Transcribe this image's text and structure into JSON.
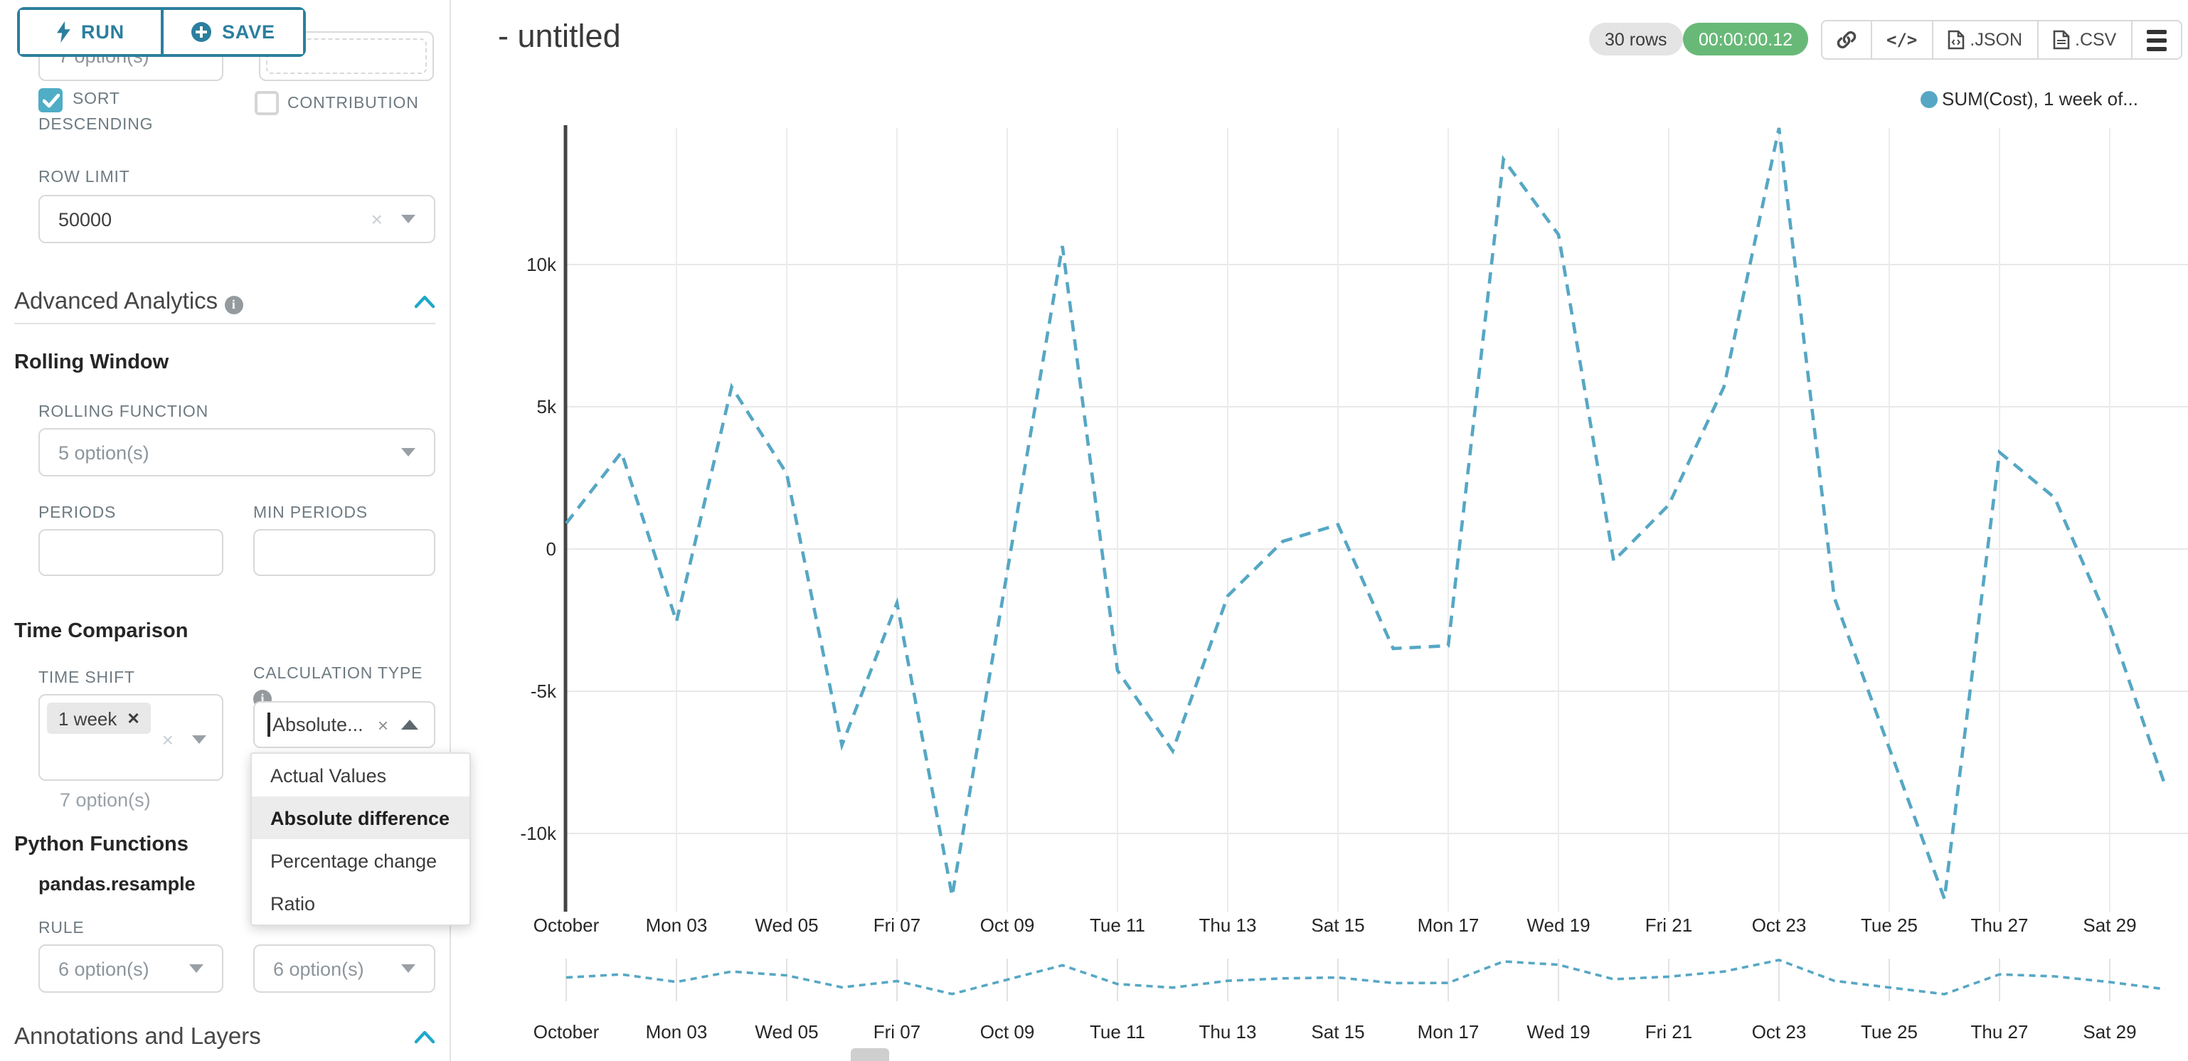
{
  "toolbar": {
    "run": "RUN",
    "save": "SAVE"
  },
  "sidebar": {
    "top_row": {
      "left_value": "7 option(s)"
    },
    "sort_descending": {
      "label_line1": "SORT",
      "label_line2": "DESCENDING",
      "checked": true
    },
    "contribution": {
      "label": "CONTRIBUTION",
      "checked": false
    },
    "row_limit": {
      "label": "ROW LIMIT",
      "value": "50000"
    },
    "advanced_analytics": {
      "title": "Advanced Analytics"
    },
    "rolling_window": {
      "title": "Rolling Window",
      "rolling_function_label": "ROLLING FUNCTION",
      "rolling_function_value": "5 option(s)",
      "periods_label": "PERIODS",
      "min_periods_label": "MIN PERIODS"
    },
    "time_comparison": {
      "title": "Time Comparison",
      "time_shift_label": "TIME SHIFT",
      "time_shift_tag": "1 week",
      "time_shift_hint": "7 option(s)",
      "calculation_type_label": "CALCULATION TYPE",
      "calculation_type_value": "Absolute...",
      "dropdown": {
        "options": [
          "Actual Values",
          "Absolute difference",
          "Percentage change",
          "Ratio"
        ],
        "selected": "Absolute difference"
      }
    },
    "python_functions": {
      "title": "Python Functions",
      "function_name": "pandas.resample",
      "rule_label": "RULE",
      "rule_value_left": "6 option(s)",
      "rule_value_right": "6 option(s)"
    },
    "annotations": {
      "title": "Annotations and Layers"
    }
  },
  "header": {
    "title": "- untitled",
    "rows_badge": "30 rows",
    "timer_badge": "00:00:00.12",
    "json_label": ".JSON",
    "csv_label": ".CSV"
  },
  "legend": {
    "label": "SUM(Cost), 1 week of..."
  },
  "colors": {
    "accent_teal": "#2b7f9e",
    "checkbox_teal": "#4fadc6",
    "chevron_blue": "#1fa8c9",
    "line_blue": "#56a7c4",
    "badge_green": "#68b978",
    "grid_gray": "#e8e8e8",
    "axis_dark": "#444444"
  },
  "chart_data": {
    "type": "line",
    "title": "- untitled",
    "legend": [
      "SUM(Cost), 1 week of..."
    ],
    "line_style": "dashed",
    "x_unit": "day of October",
    "x": [
      1,
      2,
      3,
      4,
      5,
      6,
      7,
      8,
      9,
      10,
      11,
      12,
      13,
      14,
      15,
      16,
      17,
      18,
      19,
      20,
      21,
      22,
      23,
      24,
      25,
      26,
      27,
      28,
      29,
      30
    ],
    "series": [
      {
        "name": "SUM(Cost), 1 week offset (Absolute difference)",
        "values": [
          900,
          3400,
          -2550,
          5700,
          2650,
          -6900,
          -1900,
          -12200,
          -800,
          10650,
          -4270,
          -7100,
          -1650,
          270,
          855,
          -3500,
          -3400,
          13700,
          11050,
          -420,
          1550,
          5700,
          14800,
          -1700,
          -7000,
          -12300,
          3400,
          1800,
          -2650,
          -8300
        ]
      }
    ],
    "x_tick_positions": [
      1,
      3,
      5,
      7,
      9,
      11,
      13,
      15,
      17,
      19,
      21,
      23,
      25,
      27,
      29
    ],
    "x_tick_labels": [
      "October",
      "Mon 03",
      "Wed 05",
      "Fri 07",
      "Oct 09",
      "Tue 11",
      "Thu 13",
      "Sat 15",
      "Mon 17",
      "Wed 19",
      "Fri 21",
      "Oct 23",
      "Tue 25",
      "Thu 27",
      "Sat 29"
    ],
    "y_tick_values": [
      10000,
      5000,
      0,
      -5000,
      -10000
    ],
    "y_tick_labels": [
      "10k",
      "5k",
      "0",
      "-5k",
      "-10k"
    ],
    "ylim": [
      -13000,
      15200
    ],
    "grid": true,
    "legend_position": "top-right",
    "context_brush_chart": true
  }
}
